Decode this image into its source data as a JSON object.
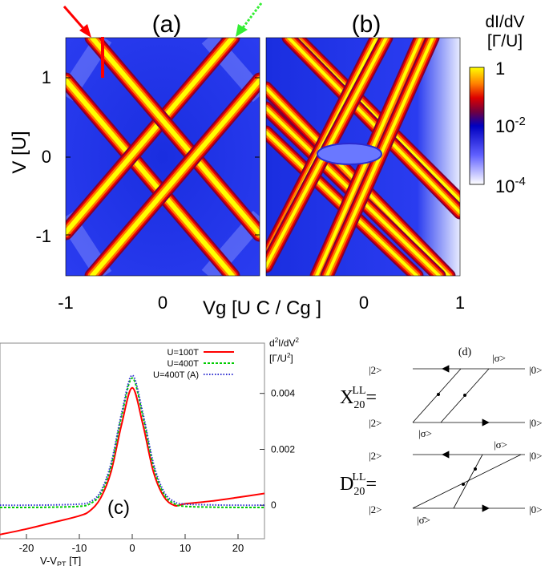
{
  "colors": {
    "colormap": [
      "#ffffff",
      "#3030ff",
      "#0000cc",
      "#800020",
      "#e00000",
      "#ff8000",
      "#ffff00"
    ],
    "series_red": "#ff0000",
    "series_green": "#00cc00",
    "series_blue": "#3030d0",
    "arrow_red": "#ff0000",
    "arrow_green": "#33ee33"
  },
  "top": {
    "panel_a_label": "(a)",
    "panel_b_label": "(b)",
    "y_ticks": [
      "1",
      "0",
      "-1"
    ],
    "x_ticks": [
      "-1",
      "0",
      "0",
      "1"
    ],
    "y_axis_label": "V [U]",
    "x_axis_label": "Vg [U C / Cg ]",
    "colorbar_title_1": "dI/dV",
    "colorbar_title_2": "[Γ/U]",
    "colorbar_ticks": [
      "1",
      "10-2",
      "10-4"
    ]
  },
  "panel_d": {
    "label": "(d)",
    "x_label": "X",
    "x_sub": "20",
    "x_sup": "LL",
    "d_label": "D",
    "d_sub": "20",
    "d_sup": "LL",
    "equals": "=",
    "state_2": "|2>",
    "state_0": "|0>",
    "state_sigma": "|σ>",
    "state_sigma_bar": "|σ̄>"
  },
  "chart_data": [
    {
      "type": "heatmap",
      "panel": "(a)",
      "xlabel": "Vg [U C / Cg ]",
      "ylabel": "V [U]",
      "xlim": [
        -1,
        0.45
      ],
      "ylim": [
        -1.5,
        1.5
      ],
      "yticks": [
        -1,
        0,
        1
      ],
      "colorbar": {
        "label": "dI/dV [Γ/U]",
        "scale": "log",
        "range": [
          0.0001,
          1
        ]
      }
    },
    {
      "type": "heatmap",
      "panel": "(b)",
      "xlim": [
        -0.45,
        1
      ],
      "ylim": [
        -1.5,
        1.5
      ],
      "colorbar": {
        "label": "dI/dV [Γ/U]",
        "scale": "log",
        "range": [
          0.0001,
          1
        ]
      }
    },
    {
      "type": "line",
      "panel": "(c)",
      "xlabel": "V-VPT [T]",
      "ylabel": "d2I/dV2 [Γ/U2]",
      "xlim": [
        -25,
        25
      ],
      "ylim": [
        -0.0012,
        0.0058
      ],
      "xticks": [
        -20,
        -10,
        0,
        10,
        20
      ],
      "yticks": [
        0,
        0.002,
        0.004
      ],
      "legend_position": "top-right",
      "series": [
        {
          "name": "U=100T",
          "x": [
            -25,
            -20,
            -15,
            -10,
            -8,
            -6,
            -4,
            -2,
            0,
            2,
            4,
            6,
            8,
            10,
            15,
            20,
            25
          ],
          "y": [
            -0.00105,
            -0.00085,
            -0.00062,
            -0.00038,
            -0.0002,
            0.00025,
            0.0012,
            0.0029,
            0.0042,
            0.0029,
            0.0012,
            0.0003,
            -1e-05,
            5e-05,
            0.00015,
            0.00028,
            0.00042
          ]
        },
        {
          "name": "U=400T",
          "x": [
            -25,
            -20,
            -15,
            -10,
            -8,
            -6,
            -4,
            -2,
            0,
            2,
            4,
            6,
            8,
            10,
            15,
            20,
            25
          ],
          "y": [
            -8e-05,
            -8e-05,
            -7e-05,
            -4e-05,
            5e-05,
            0.0004,
            0.0014,
            0.0032,
            0.00455,
            0.0032,
            0.0014,
            0.0004,
            5e-05,
            -4e-05,
            -7e-05,
            -8e-05,
            -8e-05
          ]
        },
        {
          "name": "U=400T (A)",
          "x": [
            -25,
            -20,
            -15,
            -10,
            -8,
            -6,
            -4,
            -2,
            0,
            2,
            4,
            6,
            8,
            10,
            15,
            20,
            25
          ],
          "y": [
            0,
            0,
            1e-05,
            4e-05,
            0.00012,
            0.00048,
            0.0015,
            0.0033,
            0.00465,
            0.0033,
            0.0015,
            0.00048,
            0.00012,
            4e-05,
            1e-05,
            0,
            0
          ]
        }
      ]
    }
  ]
}
